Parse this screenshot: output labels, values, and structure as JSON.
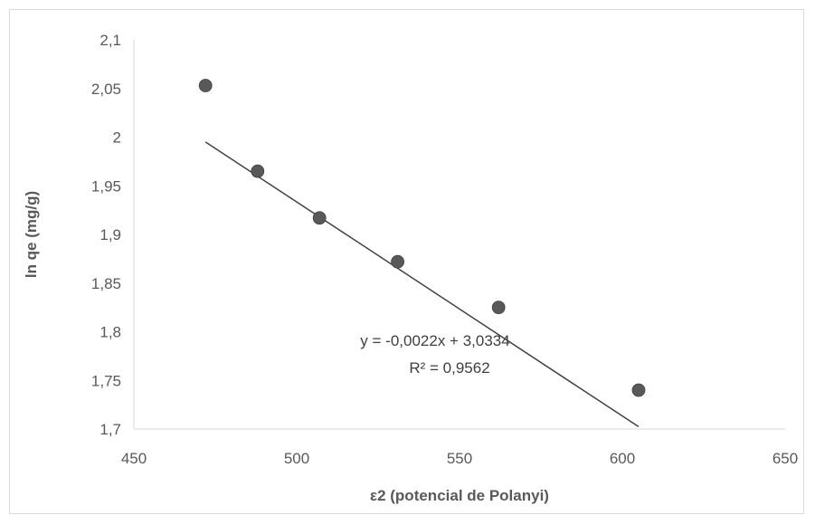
{
  "chart_data": {
    "type": "scatter",
    "title": "",
    "xlabel": "ε2 (potencial de Polanyi)",
    "ylabel": "ln qe (mg/g)",
    "xlim": [
      450,
      650
    ],
    "ylim": [
      1.7,
      2.1
    ],
    "x_ticks": [
      "450",
      "500",
      "550",
      "600",
      "650"
    ],
    "x_tick_values": [
      450,
      500,
      550,
      600,
      650
    ],
    "y_ticks": [
      "1,7",
      "1,75",
      "1,8",
      "1,85",
      "1,9",
      "1,95",
      "2",
      "2,05",
      "2,1"
    ],
    "y_tick_values": [
      1.7,
      1.75,
      1.8,
      1.85,
      1.9,
      1.95,
      2.0,
      2.05,
      2.1
    ],
    "grid": false,
    "legend": false,
    "series": [
      {
        "x": [
          472,
          488,
          507,
          531,
          562,
          605
        ],
        "y": [
          2.053,
          1.965,
          1.917,
          1.872,
          1.825,
          1.74
        ]
      }
    ],
    "trendline": {
      "slope": -0.0022,
      "intercept": 3.0334,
      "x_range": [
        472,
        605
      ],
      "equation": "y = -0,0022x + 3,0334",
      "r_squared": "R² = 0,9562"
    },
    "colors": {
      "marker": "#595959",
      "line": "#404040",
      "axis": "#d9d9d9",
      "text": "#595959"
    }
  }
}
